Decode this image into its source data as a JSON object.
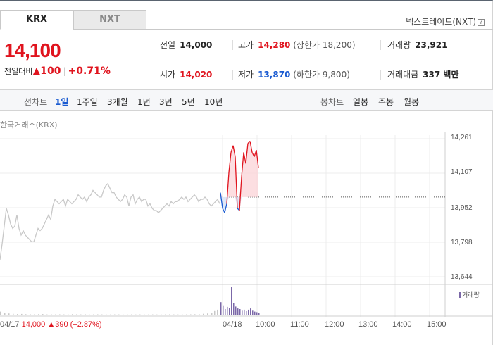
{
  "tabs": [
    {
      "label": "KRX",
      "active": true
    },
    {
      "label": "NXT",
      "active": false
    }
  ],
  "nxt_link": {
    "label": "넥스트레이드(NXT)",
    "help": "?"
  },
  "quote": {
    "price": "14,100",
    "change_label": "전일대비",
    "change_arrow": "▲",
    "change_value": "100",
    "change_rate": "+0.71%"
  },
  "stats": {
    "prev_close": {
      "label": "전일",
      "value": "14,000"
    },
    "high": {
      "label": "고가",
      "value": "14,280",
      "limit": "(상한가 18,200)"
    },
    "volume": {
      "label": "거래량",
      "value": "23,921"
    },
    "open": {
      "label": "시가",
      "value": "14,020"
    },
    "low": {
      "label": "저가",
      "value": "13,870",
      "limit": "(하한가 9,800)"
    },
    "amount": {
      "label": "거래대금",
      "value": "337 백만"
    }
  },
  "periods": {
    "line_label": "선차트",
    "line_items": [
      "1일",
      "1주일",
      "3개월",
      "1년",
      "3년",
      "5년",
      "10년"
    ],
    "selected": "1일",
    "candle_label": "봉차트",
    "candle_items": [
      "일봉",
      "주봉",
      "월봉"
    ]
  },
  "exchange_label": "한국거래소(KRX)",
  "volume_legend": "거래량",
  "prev_day_info": {
    "date": "04/17",
    "close": "14,000",
    "arrow": "▲",
    "change": "390",
    "rate": "(+2.87%)"
  },
  "colors": {
    "up": "#e0141e",
    "down": "#1a5bd1",
    "prev_line": "#c8c8c8",
    "volume_bar": "#7b68a8",
    "fill_up": "#fbd6d9"
  },
  "chart_data": {
    "type": "line",
    "y_ticks": [
      "14,261",
      "14,107",
      "13,952",
      "13,798",
      "13,644"
    ],
    "ylim": [
      13644,
      14261
    ],
    "x_ticks": [
      "04/18",
      "10:00",
      "11:00",
      "12:00",
      "13:00",
      "14:00",
      "15:00"
    ],
    "reference_price": 14000,
    "series": [
      {
        "x": [
          0,
          3,
          6,
          9,
          12,
          15,
          18,
          21,
          24,
          27,
          30,
          33,
          36,
          39,
          42,
          45,
          48,
          51,
          54,
          57,
          60,
          63,
          66,
          69,
          72,
          75,
          78,
          81,
          84,
          87,
          90,
          93,
          96,
          99,
          102,
          105,
          108,
          111,
          114,
          117,
          120,
          123,
          126,
          129,
          132,
          135,
          138,
          141,
          144,
          147,
          150,
          153,
          156,
          159,
          162,
          165,
          168,
          171,
          174,
          177,
          180,
          183,
          186,
          189,
          192,
          195,
          198,
          201,
          204,
          207,
          210,
          213,
          216,
          219,
          222,
          225,
          228,
          231,
          234,
          237,
          240,
          243,
          246,
          249,
          252,
          255,
          258,
          261,
          264,
          267,
          270,
          273,
          276,
          279,
          282,
          285,
          288,
          291,
          294,
          297,
          300,
          303,
          306,
          309,
          312
        ],
        "values": [
          13720,
          13790,
          13870,
          13950,
          13920,
          13880,
          13860,
          13870,
          13920,
          13860,
          13830,
          13850,
          13830,
          13820,
          13810,
          13800,
          13800,
          13830,
          13860,
          13850,
          13860,
          13880,
          13900,
          13920,
          13900,
          13960,
          13990,
          13980,
          13970,
          13980,
          13990,
          13960,
          13990,
          13980,
          13970,
          13980,
          13990,
          14010,
          14000,
          13990,
          14000,
          13980,
          14000,
          14010,
          14030,
          14020,
          14010,
          14000,
          14000,
          14030,
          14050,
          14060,
          14040,
          14020,
          14020,
          14000,
          13990,
          13980,
          13990,
          14010,
          14000,
          13960,
          14000,
          14010,
          13970,
          13990,
          14000,
          13980,
          13990,
          13990,
          13960,
          13970,
          13950,
          13940,
          13940,
          13930,
          13940,
          13950,
          13960,
          13970,
          13960,
          13980,
          13970,
          13980,
          13980,
          13990,
          14000,
          13990,
          14000,
          13980,
          13990,
          14000,
          14010,
          14000,
          13980,
          13990,
          13990,
          14000,
          13990,
          13970,
          13960,
          13970,
          13980,
          13990,
          13970
        ]
      },
      {
        "x": [
          313,
          316,
          319,
          322,
          325,
          328,
          331,
          334,
          337,
          340,
          343,
          346,
          349,
          352,
          355,
          358,
          361,
          364,
          367
        ],
        "values": [
          14020,
          13950,
          13930,
          13970,
          14110,
          14200,
          14230,
          14180,
          13950,
          13940,
          14090,
          14200,
          14150,
          14240,
          14250,
          14200,
          14180,
          14210,
          14130
        ]
      }
    ],
    "volume": {
      "x": [
        0,
        6,
        12,
        18,
        24,
        30,
        36,
        42,
        48,
        54,
        60,
        66,
        72,
        78,
        84,
        90,
        96,
        102,
        108,
        114,
        120,
        126,
        132,
        138,
        144,
        150,
        156,
        162,
        168,
        174,
        180,
        186,
        192,
        198,
        204,
        210,
        216,
        222,
        228,
        234,
        240,
        246,
        252,
        258,
        264,
        270,
        276,
        282,
        288,
        294,
        300,
        304,
        308,
        313,
        316,
        319,
        322,
        325,
        328,
        331,
        334,
        337,
        340,
        343,
        346,
        349,
        352,
        355,
        358,
        361,
        364,
        367
      ],
      "values": [
        100,
        60,
        40,
        30,
        20,
        25,
        15,
        20,
        10,
        15,
        20,
        10,
        15,
        10,
        12,
        8,
        10,
        15,
        12,
        8,
        20,
        10,
        8,
        12,
        10,
        8,
        6,
        10,
        8,
        6,
        10,
        8,
        6,
        8,
        10,
        6,
        8,
        6,
        8,
        10,
        12,
        8,
        6,
        8,
        10,
        12,
        14,
        20,
        30,
        40,
        60,
        140,
        160,
        400,
        300,
        180,
        250,
        220,
        900,
        380,
        260,
        200,
        180,
        150,
        160,
        120,
        160,
        200,
        150,
        100,
        80,
        60
      ]
    }
  }
}
